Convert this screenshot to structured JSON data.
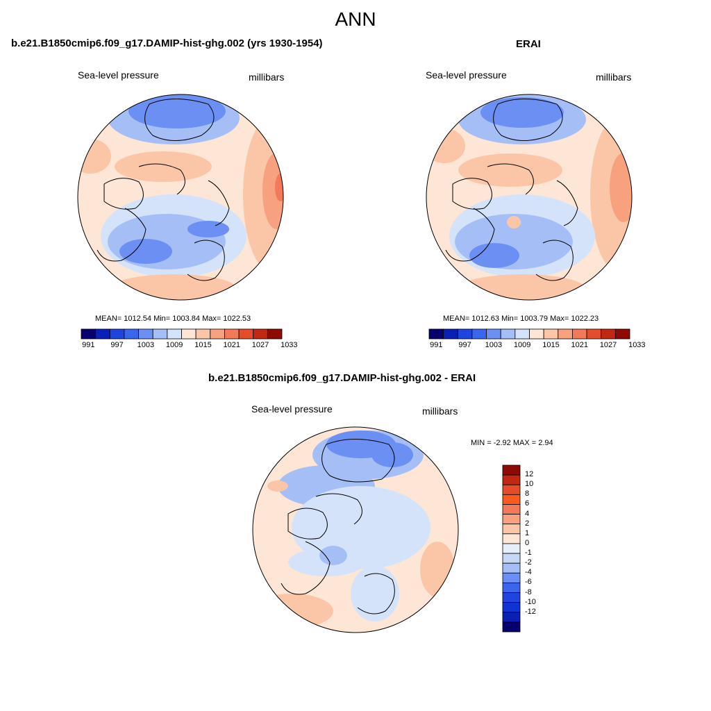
{
  "title": "ANN",
  "panels": [
    {
      "id": "model",
      "title": "b.e21.B1850cmip6.f09_g17.DAMIP-hist-ghg.002 (yrs 1930-1954)",
      "left_label": "Sea-level pressure",
      "right_label": "millibars",
      "stats": "MEAN= 1012.54  Min= 1003.84  Max= 1022.53"
    },
    {
      "id": "obs",
      "title": "ERAI",
      "left_label": "Sea-level pressure",
      "right_label": "millibars",
      "stats": "MEAN= 1012.63  Min= 1003.79  Max= 1022.23"
    },
    {
      "id": "diff",
      "title": "b.e21.B1850cmip6.f09_g17.DAMIP-hist-ghg.002 - ERAI",
      "left_label": "Sea-level pressure",
      "right_label": "millibars",
      "stats": "MIN =  -2.92 MAX =   2.94"
    }
  ],
  "colorbar_abs": {
    "colors": [
      "#08006e",
      "#0a1fb8",
      "#1f44e0",
      "#3a66ee",
      "#6b8ff2",
      "#a5bff6",
      "#d5e3fa",
      "#fde6d5",
      "#fbc6a8",
      "#f7a17f",
      "#f27a58",
      "#e44c2a",
      "#c22712",
      "#8e0b05"
    ],
    "tick_labels": [
      "991",
      "997",
      "1003",
      "1009",
      "1015",
      "1021",
      "1027",
      "1033"
    ]
  },
  "colorbar_diff": {
    "colors": [
      "#8e0b05",
      "#c22712",
      "#e44c2a",
      "#f85a20",
      "#f27a58",
      "#f7a17f",
      "#fbc6a8",
      "#fde6d5",
      "#e6eefb",
      "#c7d8f7",
      "#a5bff6",
      "#6b8ff2",
      "#3a66ee",
      "#1f44e0",
      "#1033d6",
      "#0a1fb8",
      "#08006e"
    ],
    "tick_labels": [
      "12",
      "10",
      "8",
      "6",
      "4",
      "2",
      "1",
      "0",
      "-1",
      "-2",
      "-4",
      "-6",
      "-8",
      "-10",
      "-12"
    ]
  }
}
